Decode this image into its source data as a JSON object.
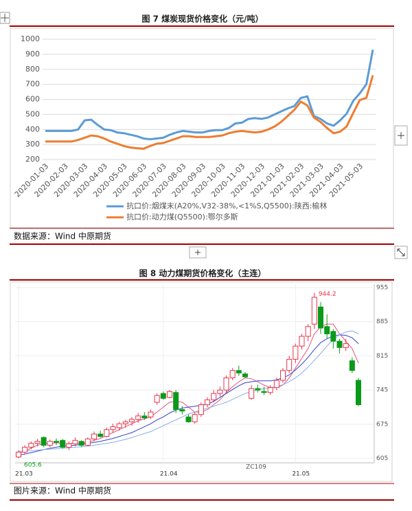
{
  "chart_data": [
    {
      "type": "line",
      "title": "图 7 煤炭现货价格变化（元/吨）",
      "source": "数据来源：Wind 中原期货",
      "categories": [
        "2020-01-03",
        null,
        null,
        "2020-02-03",
        null,
        null,
        "2020-03-03",
        null,
        null,
        "2020-04-03",
        null,
        null,
        "2020-05-03",
        null,
        null,
        "2020-06-03",
        null,
        null,
        "2020-07-03",
        null,
        null,
        "2020-08-03",
        null,
        null,
        "2020-09-03",
        null,
        null,
        "2020-10-03",
        null,
        null,
        "2020-11-03",
        null,
        null,
        "2020-12-03",
        null,
        null,
        "2021-01-03",
        null,
        null,
        "2021-02-03",
        null,
        null,
        "2021-03-03",
        null,
        null,
        "2021-04-03",
        null,
        null,
        "2021-05-03",
        null,
        null
      ],
      "series": [
        {
          "name": "抗口价:烟煤末(A20%,V32-38%,<1%S,Q5500):陕西:榆林",
          "color": "#5b9bd5",
          "values": [
            390,
            390,
            390,
            390,
            390,
            400,
            460,
            465,
            430,
            400,
            395,
            380,
            375,
            365,
            355,
            340,
            335,
            340,
            345,
            365,
            380,
            390,
            385,
            380,
            380,
            390,
            395,
            395,
            410,
            440,
            445,
            470,
            475,
            470,
            480,
            500,
            520,
            540,
            555,
            610,
            620,
            490,
            470,
            440,
            425,
            460,
            505,
            590,
            640,
            700,
            930
          ]
        },
        {
          "name": "抗口价:动力煤(Q5500):鄂尔多斯",
          "color": "#ed7d31",
          "values": [
            320,
            320,
            320,
            320,
            320,
            330,
            345,
            360,
            355,
            340,
            320,
            305,
            290,
            280,
            275,
            272,
            290,
            305,
            310,
            325,
            340,
            355,
            355,
            350,
            350,
            350,
            355,
            360,
            375,
            385,
            390,
            385,
            380,
            385,
            400,
            420,
            450,
            490,
            530,
            585,
            560,
            480,
            450,
            410,
            375,
            385,
            420,
            510,
            595,
            610,
            760
          ]
        }
      ],
      "ylim": [
        200,
        1000
      ],
      "yticks": [
        200,
        300,
        400,
        500,
        600,
        700,
        800,
        900,
        1000
      ],
      "grid": true
    },
    {
      "type": "candlestick",
      "title": "图 8 动力煤期货价格变化（主连）",
      "source": "图片来源：Wind 中原期货",
      "series_label": "ZC109",
      "annotations": [
        "944.2",
        "605.6"
      ],
      "categories": [
        "21.03",
        null,
        null,
        null,
        null,
        null,
        null,
        null,
        null,
        null,
        null,
        null,
        null,
        null,
        null,
        null,
        null,
        null,
        null,
        null,
        null,
        null,
        null,
        "21.04",
        null,
        null,
        null,
        null,
        null,
        null,
        null,
        null,
        null,
        null,
        null,
        null,
        null,
        null,
        null,
        null,
        null,
        null,
        null,
        null,
        "21.05",
        null,
        null,
        null,
        null,
        null,
        null,
        null,
        null,
        null,
        null
      ],
      "open": [
        608,
        618,
        628,
        636,
        648,
        632,
        640,
        642,
        628,
        635,
        640,
        632,
        645,
        655,
        650,
        664,
        668,
        676,
        680,
        685,
        692,
        690,
        720,
        738,
        730,
        740,
        705,
        690,
        680,
        695,
        715,
        725,
        738,
        745,
        770,
        785,
        778,
        728,
        748,
        742,
        740,
        750,
        765,
        785,
        808,
        835,
        855,
        880,
        915,
        875,
        865,
        845,
        832,
        805,
        765
      ],
      "high": [
        622,
        632,
        640,
        645,
        650,
        644,
        646,
        645,
        640,
        648,
        642,
        648,
        660,
        662,
        668,
        676,
        680,
        684,
        690,
        698,
        700,
        705,
        738,
        742,
        745,
        745,
        712,
        695,
        700,
        720,
        730,
        745,
        752,
        775,
        790,
        795,
        782,
        755,
        756,
        752,
        755,
        770,
        790,
        815,
        840,
        860,
        880,
        944.2,
        925,
        900,
        870,
        850,
        850,
        812,
        770
      ],
      "low": [
        605.6,
        614,
        624,
        630,
        628,
        628,
        632,
        625,
        622,
        630,
        628,
        630,
        640,
        648,
        648,
        658,
        662,
        668,
        672,
        678,
        684,
        686,
        715,
        725,
        728,
        698,
        695,
        678,
        676,
        690,
        710,
        720,
        732,
        740,
        765,
        774,
        770,
        725,
        740,
        735,
        735,
        745,
        760,
        780,
        800,
        828,
        845,
        870,
        860,
        850,
        830,
        820,
        825,
        780,
        712
      ],
      "close": [
        618,
        628,
        636,
        640,
        632,
        640,
        638,
        628,
        635,
        642,
        632,
        645,
        655,
        650,
        664,
        670,
        676,
        680,
        685,
        692,
        688,
        700,
        734,
        728,
        742,
        705,
        702,
        680,
        695,
        715,
        725,
        738,
        745,
        770,
        785,
        780,
        772,
        748,
        745,
        740,
        750,
        765,
        785,
        808,
        835,
        855,
        875,
        935,
        872,
        860,
        845,
        832,
        840,
        785,
        715
      ],
      "up_color": "#e8334a",
      "down_color": "#0a9a1a",
      "series": [
        {
          "color": "#e8507a",
          "values": [
            615,
            620,
            626,
            632,
            635,
            636,
            637,
            636,
            635,
            637,
            636,
            638,
            642,
            646,
            652,
            658,
            664,
            670,
            676,
            682,
            686,
            690,
            700,
            710,
            720,
            722,
            720,
            710,
            700,
            700,
            705,
            715,
            725,
            740,
            752,
            762,
            770,
            768,
            762,
            755,
            750,
            750,
            755,
            770,
            790,
            810,
            830,
            860,
            875,
            880,
            880,
            860,
            845,
            830,
            800
          ]
        },
        {
          "color": "#3040d0",
          "values": [
            612,
            614,
            617,
            620,
            623,
            626,
            628,
            630,
            631,
            632,
            634,
            636,
            638,
            640,
            643,
            646,
            650,
            654,
            658,
            664,
            670,
            676,
            684,
            690,
            698,
            704,
            708,
            710,
            712,
            714,
            716,
            722,
            730,
            738,
            746,
            754,
            760,
            762,
            764,
            764,
            764,
            766,
            770,
            776,
            786,
            798,
            812,
            828,
            842,
            850,
            856,
            858,
            857,
            852,
            840
          ]
        },
        {
          "color": "#88aee6",
          "values": [
            620,
            620,
            621,
            622,
            623,
            624,
            625,
            626,
            627,
            628,
            629,
            630,
            632,
            634,
            636,
            638,
            641,
            644,
            648,
            652,
            656,
            660,
            666,
            672,
            678,
            684,
            690,
            696,
            700,
            704,
            708,
            712,
            716,
            720,
            726,
            732,
            738,
            742,
            746,
            748,
            750,
            752,
            756,
            762,
            770,
            780,
            792,
            806,
            820,
            835,
            848,
            858,
            864,
            866,
            860
          ]
        }
      ],
      "ylim": [
        596,
        962
      ],
      "yticks": [
        605,
        675,
        745,
        815,
        885,
        955
      ],
      "grid": true
    }
  ]
}
